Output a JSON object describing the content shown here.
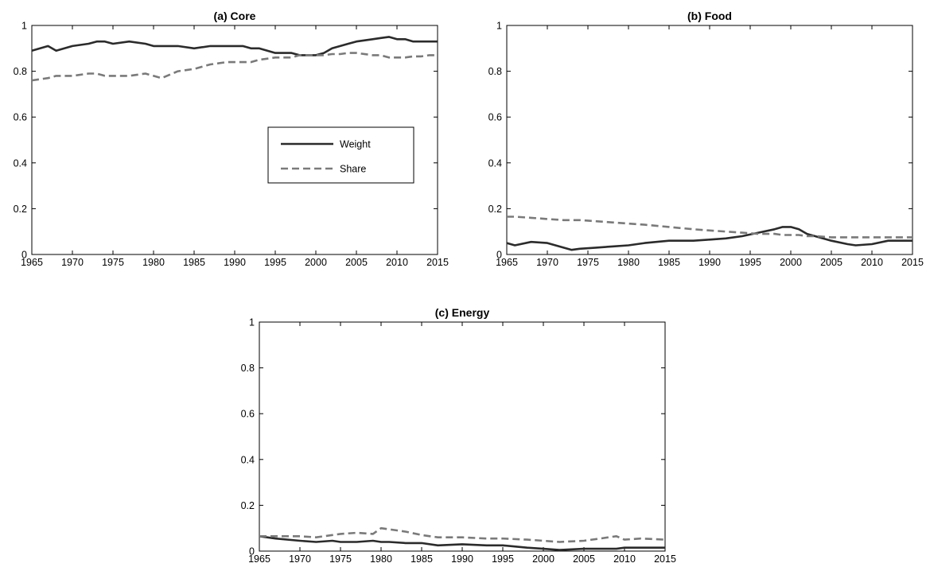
{
  "colors": {
    "weight": "#2b2b2b",
    "share": "#7a7a7a",
    "axes": "#000000",
    "background": "#ffffff"
  },
  "chart_data": [
    {
      "type": "line",
      "title": "(a) Core",
      "xlabel": "",
      "ylabel": "",
      "xlim": [
        1965,
        2015
      ],
      "ylim": [
        0,
        1
      ],
      "xticks": [
        "1965",
        "1970",
        "1975",
        "1980",
        "1985",
        "1990",
        "1995",
        "2000",
        "2005",
        "2010",
        "2015"
      ],
      "yticks": [
        "0",
        "0.2",
        "0.4",
        "0.6",
        "0.8",
        "1"
      ],
      "grid": false,
      "legend": {
        "position": "center-right",
        "entries": [
          "Weight",
          "Share"
        ]
      },
      "x": [
        1965,
        1967,
        1968,
        1970,
        1972,
        1973,
        1974,
        1975,
        1977,
        1979,
        1980,
        1981,
        1983,
        1985,
        1987,
        1989,
        1991,
        1992,
        1993,
        1995,
        1997,
        1998,
        2000,
        2001,
        2002,
        2003,
        2004,
        2005,
        2007,
        2008,
        2009,
        2010,
        2011,
        2012,
        2013,
        2014,
        2015
      ],
      "series": [
        {
          "name": "Weight",
          "style": "solid",
          "values": [
            0.89,
            0.91,
            0.89,
            0.91,
            0.92,
            0.93,
            0.93,
            0.92,
            0.93,
            0.92,
            0.91,
            0.91,
            0.91,
            0.9,
            0.91,
            0.91,
            0.91,
            0.9,
            0.9,
            0.88,
            0.88,
            0.87,
            0.87,
            0.88,
            0.9,
            0.91,
            0.92,
            0.93,
            0.94,
            0.945,
            0.95,
            0.94,
            0.94,
            0.93,
            0.93,
            0.93,
            0.93
          ]
        },
        {
          "name": "Share",
          "style": "dashed",
          "values": [
            0.76,
            0.77,
            0.78,
            0.78,
            0.79,
            0.79,
            0.78,
            0.78,
            0.78,
            0.79,
            0.78,
            0.77,
            0.8,
            0.81,
            0.83,
            0.84,
            0.84,
            0.84,
            0.85,
            0.86,
            0.86,
            0.87,
            0.87,
            0.87,
            0.875,
            0.875,
            0.88,
            0.88,
            0.87,
            0.87,
            0.86,
            0.86,
            0.86,
            0.865,
            0.865,
            0.87,
            0.87
          ]
        }
      ]
    },
    {
      "type": "line",
      "title": "(b) Food",
      "xlabel": "",
      "ylabel": "",
      "xlim": [
        1965,
        2015
      ],
      "ylim": [
        0,
        1
      ],
      "xticks": [
        "1965",
        "1970",
        "1975",
        "1980",
        "1985",
        "1990",
        "1995",
        "2000",
        "2005",
        "2010",
        "2015"
      ],
      "yticks": [
        "0",
        "0.2",
        "0.4",
        "0.6",
        "0.8",
        "1"
      ],
      "grid": false,
      "x": [
        1965,
        1966,
        1968,
        1970,
        1972,
        1973,
        1974,
        1976,
        1978,
        1980,
        1982,
        1985,
        1988,
        1990,
        1992,
        1994,
        1996,
        1998,
        1999,
        2000,
        2001,
        2002,
        2003,
        2005,
        2007,
        2008,
        2010,
        2012,
        2015
      ],
      "series": [
        {
          "name": "Weight",
          "style": "solid",
          "values": [
            0.05,
            0.04,
            0.055,
            0.05,
            0.03,
            0.02,
            0.025,
            0.03,
            0.035,
            0.04,
            0.05,
            0.06,
            0.06,
            0.065,
            0.07,
            0.08,
            0.095,
            0.11,
            0.12,
            0.12,
            0.11,
            0.09,
            0.08,
            0.06,
            0.045,
            0.04,
            0.045,
            0.06,
            0.06
          ]
        },
        {
          "name": "Share",
          "style": "dashed",
          "values": [
            0.165,
            0.165,
            0.16,
            0.155,
            0.15,
            0.15,
            0.15,
            0.145,
            0.14,
            0.135,
            0.13,
            0.12,
            0.11,
            0.105,
            0.1,
            0.095,
            0.09,
            0.09,
            0.085,
            0.085,
            0.085,
            0.08,
            0.08,
            0.075,
            0.075,
            0.075,
            0.075,
            0.075,
            0.075
          ]
        }
      ]
    },
    {
      "type": "line",
      "title": "(c) Energy",
      "xlabel": "",
      "ylabel": "",
      "xlim": [
        1965,
        2015
      ],
      "ylim": [
        0,
        1
      ],
      "xticks": [
        "1965",
        "1970",
        "1975",
        "1980",
        "1985",
        "1990",
        "1995",
        "2000",
        "2005",
        "2010",
        "2015"
      ],
      "yticks": [
        "0",
        "0.2",
        "0.4",
        "0.6",
        "0.8",
        "1"
      ],
      "grid": false,
      "x": [
        1965,
        1967,
        1970,
        1972,
        1974,
        1975,
        1977,
        1979,
        1980,
        1981,
        1983,
        1985,
        1987,
        1990,
        1993,
        1995,
        1998,
        2000,
        2002,
        2005,
        2007,
        2009,
        2010,
        2012,
        2015
      ],
      "series": [
        {
          "name": "Weight",
          "style": "solid",
          "values": [
            0.065,
            0.055,
            0.045,
            0.04,
            0.045,
            0.04,
            0.04,
            0.045,
            0.04,
            0.04,
            0.035,
            0.035,
            0.025,
            0.03,
            0.025,
            0.025,
            0.015,
            0.01,
            0.005,
            0.01,
            0.01,
            0.01,
            0.015,
            0.015,
            0.015
          ]
        },
        {
          "name": "Share",
          "style": "dashed",
          "values": [
            0.065,
            0.065,
            0.065,
            0.06,
            0.07,
            0.075,
            0.08,
            0.075,
            0.1,
            0.095,
            0.085,
            0.07,
            0.06,
            0.06,
            0.055,
            0.055,
            0.05,
            0.045,
            0.04,
            0.045,
            0.055,
            0.065,
            0.05,
            0.055,
            0.05
          ]
        }
      ]
    }
  ]
}
